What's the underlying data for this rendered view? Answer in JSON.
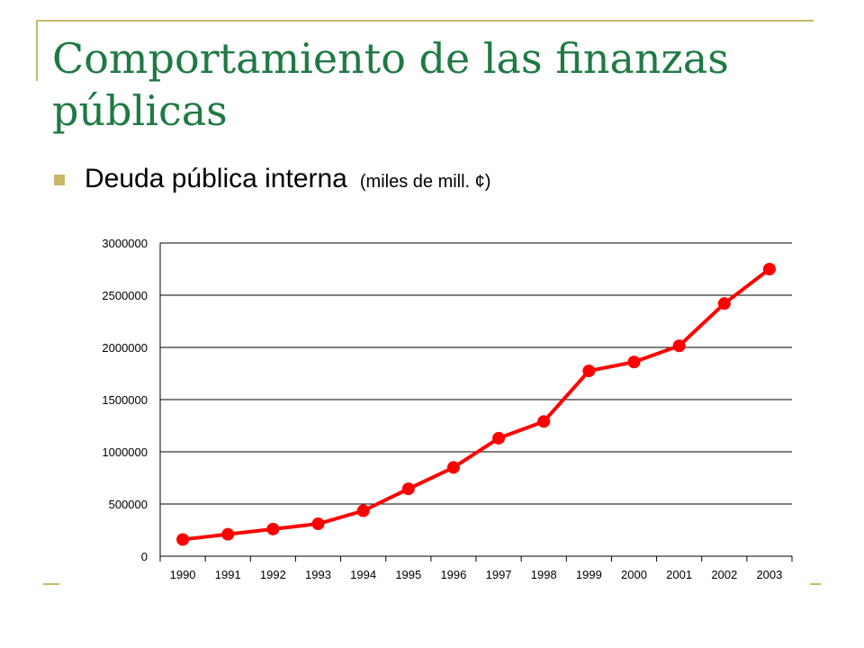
{
  "slide": {
    "title": "Comportamiento de las finanzas públicas",
    "bullet": {
      "main": "Deuda pública interna",
      "sub": "(miles de mill. ¢)"
    }
  },
  "colors": {
    "title": "#1e7a43",
    "accent": "#c8b869",
    "series": "#ff0000",
    "gridline": "#000000"
  },
  "chart_data": {
    "type": "line",
    "title": "",
    "xlabel": "",
    "ylabel": "",
    "categories": [
      "1990",
      "1991",
      "1992",
      "1993",
      "1994",
      "1995",
      "1996",
      "1997",
      "1998",
      "1999",
      "2000",
      "2001",
      "2002",
      "2003"
    ],
    "series": [
      {
        "values": [
          160000,
          210000,
          260000,
          310000,
          435000,
          645000,
          850000,
          1130000,
          1290000,
          1775000,
          1860000,
          2015000,
          2420000,
          2750000
        ]
      }
    ],
    "ylim": [
      0,
      3000000
    ],
    "yticks": [
      0,
      500000,
      1000000,
      1500000,
      2000000,
      2500000,
      3000000
    ],
    "ytick_labels": [
      "0",
      "500000",
      "1000000",
      "1500000",
      "2000000",
      "2500000",
      "3000000"
    ],
    "grid": true,
    "legend": "none",
    "markers": "circle"
  }
}
